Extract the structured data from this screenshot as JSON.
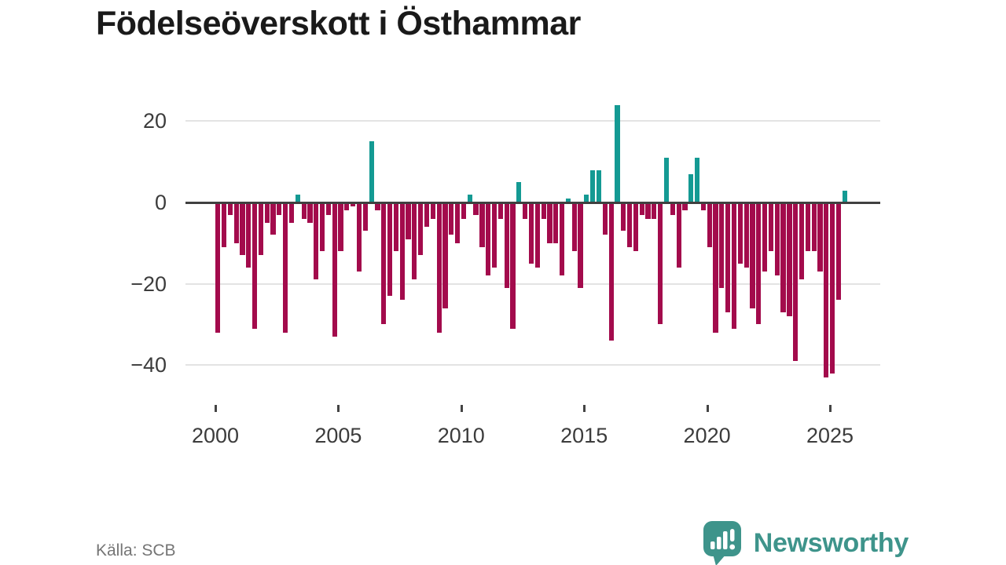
{
  "title": "Födelseöverskott i Östhammar",
  "source": "Källa: SCB",
  "logo": {
    "text": "Newsworthy",
    "icon": "newsworthy-speech-bubble-chart-icon"
  },
  "chart_data": {
    "type": "bar",
    "title": "Födelseöverskott i Östhammar",
    "xlabel": "",
    "ylabel": "",
    "frequency": "quarterly",
    "period_start": "2000 Q1",
    "period_end": "2025 Q3",
    "values": [
      -32,
      -11,
      -3,
      -10,
      -13,
      -16,
      -31,
      -13,
      -5,
      -8,
      -3,
      -32,
      -5,
      2,
      -4,
      -5,
      -19,
      -12,
      -3,
      -33,
      -12,
      -2,
      -1,
      -17,
      -7,
      15,
      -2,
      -30,
      -23,
      -12,
      -24,
      -9,
      -19,
      -13,
      -6,
      -4,
      -32,
      -26,
      -8,
      -10,
      -4,
      2,
      -3,
      -11,
      -18,
      -16,
      -4,
      -21,
      -31,
      5,
      -4,
      -15,
      -16,
      -4,
      -10,
      -10,
      -18,
      1,
      -12,
      -21,
      2,
      8,
      8,
      -8,
      -34,
      24,
      -7,
      -11,
      -12,
      -3,
      -4,
      -4,
      -30,
      11,
      -3,
      -16,
      -2,
      7,
      11,
      -2,
      -11,
      -32,
      -21,
      -27,
      -31,
      -15,
      -16,
      -26,
      -30,
      -17,
      -12,
      -18,
      -27,
      -28,
      -39,
      -19,
      -12,
      -12,
      -17,
      -43,
      -42,
      -24,
      3
    ],
    "y_ticks": [
      {
        "value": 20,
        "label": "20"
      },
      {
        "value": 0,
        "label": "0"
      },
      {
        "value": -20,
        "label": "−20"
      },
      {
        "value": -40,
        "label": "−40"
      }
    ],
    "x_ticks": [
      {
        "year": 2000,
        "label": "2000"
      },
      {
        "year": 2005,
        "label": "2005"
      },
      {
        "year": 2010,
        "label": "2010"
      },
      {
        "year": 2015,
        "label": "2015"
      },
      {
        "year": 2020,
        "label": "2020"
      },
      {
        "year": 2025,
        "label": "2025"
      }
    ],
    "ylim": [
      -46,
      26
    ],
    "grid": "horizontal",
    "legend": "none",
    "colors": {
      "negative": "#a30b4c",
      "positive": "#149a93",
      "zero_axis": "#404040",
      "gridline": "#e3e3e3",
      "brand_teal": "#3e948b"
    }
  }
}
